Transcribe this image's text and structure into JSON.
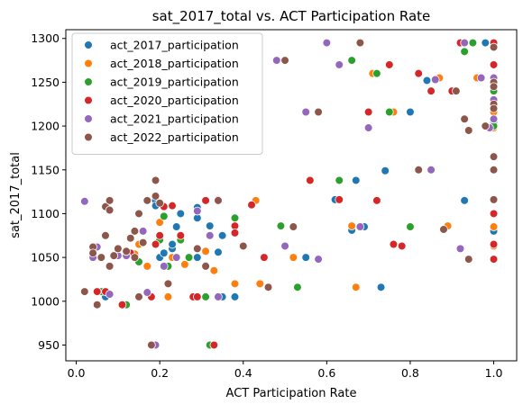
{
  "chart_data": {
    "type": "scatter",
    "title": "sat_2017_total vs. ACT Participation Rate",
    "xlabel": "ACT Participation Rate",
    "ylabel": "sat_2017_total",
    "xlim": [
      -0.025,
      1.055
    ],
    "ylim": [
      932,
      1310
    ],
    "xticks": [
      0.0,
      0.2,
      0.4,
      0.6,
      0.8,
      1.0
    ],
    "xtick_labels": [
      "0.0",
      "0.2",
      "0.4",
      "0.6",
      "0.8",
      "1.0"
    ],
    "yticks": [
      950,
      1000,
      1050,
      1100,
      1150,
      1200,
      1250,
      1300
    ],
    "ytick_labels": [
      "950",
      "1000",
      "1050",
      "1100",
      "1150",
      "1200",
      "1250",
      "1300"
    ],
    "grid": false,
    "legend_position": "upper-left",
    "series": [
      {
        "name": "act_2017_participation",
        "color": "#1f77b4",
        "x": [
          0.05,
          0.07,
          0.18,
          0.19,
          0.19,
          0.2,
          0.21,
          0.23,
          0.23,
          0.24,
          0.25,
          0.29,
          0.29,
          0.29,
          0.29,
          0.31,
          0.32,
          0.34,
          0.35,
          0.35,
          0.38,
          0.55,
          0.62,
          0.66,
          0.67,
          0.69,
          0.73,
          0.74,
          0.8,
          0.84,
          0.93,
          0.98,
          1.0,
          1.0,
          1.0
        ],
        "y": [
          1011,
          1005,
          950,
          1115,
          1109,
          1050,
          1055,
          1060,
          1065,
          1085,
          1100,
          1095,
          1103,
          1107,
          1050,
          1041,
          1086,
          1056,
          1075,
          1005,
          1005,
          1050,
          1116,
          1081,
          1138,
          1085,
          1016,
          1149,
          1216,
          1252,
          1115,
          1295,
          1295,
          1205,
          1080
        ]
      },
      {
        "name": "act_2018_participation",
        "color": "#ff7f0e",
        "x": [
          0.07,
          0.14,
          0.15,
          0.17,
          0.2,
          0.22,
          0.23,
          0.25,
          0.26,
          0.31,
          0.33,
          0.38,
          0.43,
          0.44,
          0.52,
          0.66,
          0.67,
          0.71,
          0.76,
          0.87,
          0.89,
          0.96,
          1.0,
          1.0,
          1.0,
          1.0,
          1.0,
          1.0,
          1.0
        ],
        "y": [
          1011,
          1054,
          1065,
          1040,
          1090,
          1005,
          1050,
          1070,
          1042,
          1057,
          1035,
          1020,
          1115,
          1020,
          1050,
          1086,
          1016,
          1260,
          1216,
          1255,
          1086,
          1255,
          1295,
          1270,
          1243,
          1216,
          1198,
          1085,
          1063
        ]
      },
      {
        "name": "act_2019_participation",
        "color": "#2ca02c",
        "x": [
          0.06,
          0.12,
          0.15,
          0.18,
          0.2,
          0.21,
          0.22,
          0.25,
          0.27,
          0.31,
          0.32,
          0.38,
          0.49,
          0.53,
          0.63,
          0.66,
          0.72,
          0.75,
          0.78,
          0.8,
          0.93,
          0.95,
          1.0,
          1.0
        ],
        "y": [
          1011,
          996,
          1045,
          1005,
          1070,
          1097,
          1040,
          1070,
          1050,
          1005,
          950,
          1095,
          1086,
          1016,
          1138,
          1275,
          1260,
          1216,
          1063,
          1085,
          1285,
          1295,
          1240,
          1200
        ]
      },
      {
        "name": "act_2020_participation",
        "color": "#d62728",
        "x": [
          0.05,
          0.07,
          0.11,
          0.13,
          0.18,
          0.19,
          0.2,
          0.21,
          0.23,
          0.25,
          0.28,
          0.29,
          0.31,
          0.33,
          0.38,
          0.38,
          0.42,
          0.45,
          0.56,
          0.63,
          0.7,
          0.72,
          0.75,
          0.76,
          0.78,
          0.82,
          0.85,
          0.9,
          0.92,
          1.0,
          1.0,
          1.0,
          1.0,
          1.0,
          1.0,
          1.0
        ],
        "y": [
          1011,
          1011,
          996,
          1055,
          1005,
          1065,
          1075,
          1108,
          1109,
          1075,
          1005,
          1005,
          1115,
          950,
          1086,
          1078,
          1110,
          1050,
          1138,
          1116,
          1216,
          1115,
          1270,
          1065,
          1063,
          1260,
          1240,
          1240,
          1295,
          1295,
          1270,
          1255,
          1208,
          1065,
          1100,
          1048
        ]
      },
      {
        "name": "act_2021_participation",
        "color": "#9467bd",
        "x": [
          0.02,
          0.04,
          0.04,
          0.05,
          0.08,
          0.1,
          0.12,
          0.15,
          0.16,
          0.17,
          0.19,
          0.21,
          0.24,
          0.29,
          0.32,
          0.34,
          0.34,
          0.48,
          0.5,
          0.55,
          0.58,
          0.6,
          0.63,
          0.68,
          0.7,
          0.85,
          0.86,
          0.92,
          0.93,
          0.97,
          0.99,
          1.0,
          1.0,
          1.0
        ],
        "y": [
          1114,
          1060,
          1050,
          1062,
          1008,
          1052,
          1052,
          1005,
          1080,
          1010,
          950,
          1040,
          1050,
          1103,
          1075,
          1116,
          1005,
          1275,
          1063,
          1216,
          1048,
          1295,
          1270,
          1085,
          1198,
          1150,
          1253,
          1060,
          1295,
          1255,
          1198,
          1208,
          1255,
          1230
        ]
      },
      {
        "name": "act_2022_participation",
        "color": "#8c564b",
        "x": [
          0.02,
          0.04,
          0.04,
          0.05,
          0.06,
          0.07,
          0.07,
          0.08,
          0.08,
          0.08,
          0.09,
          0.1,
          0.12,
          0.13,
          0.14,
          0.14,
          0.15,
          0.15,
          0.16,
          0.17,
          0.18,
          0.19,
          0.19,
          0.2,
          0.22,
          0.29,
          0.31,
          0.34,
          0.4,
          0.46,
          0.5,
          0.52,
          0.58,
          0.68,
          0.82,
          0.88,
          0.91,
          0.93,
          0.94,
          0.94,
          0.98,
          1.0,
          1.0,
          1.0,
          1.0,
          1.0,
          1.0,
          1.0,
          1.0
        ],
        "y": [
          1011,
          1062,
          1055,
          996,
          1050,
          1075,
          1108,
          1115,
          1104,
          1040,
          1052,
          1060,
          1057,
          1072,
          1050,
          1080,
          1100,
          1005,
          1067,
          1115,
          950,
          1138,
          1120,
          1112,
          1020,
          1060,
          1040,
          1115,
          1063,
          1016,
          1275,
          1085,
          1216,
          1295,
          1150,
          1082,
          1240,
          1208,
          1195,
          1048,
          1200,
          1290,
          1250,
          1245,
          1225,
          1220,
          1165,
          1150,
          1116
        ]
      }
    ]
  }
}
